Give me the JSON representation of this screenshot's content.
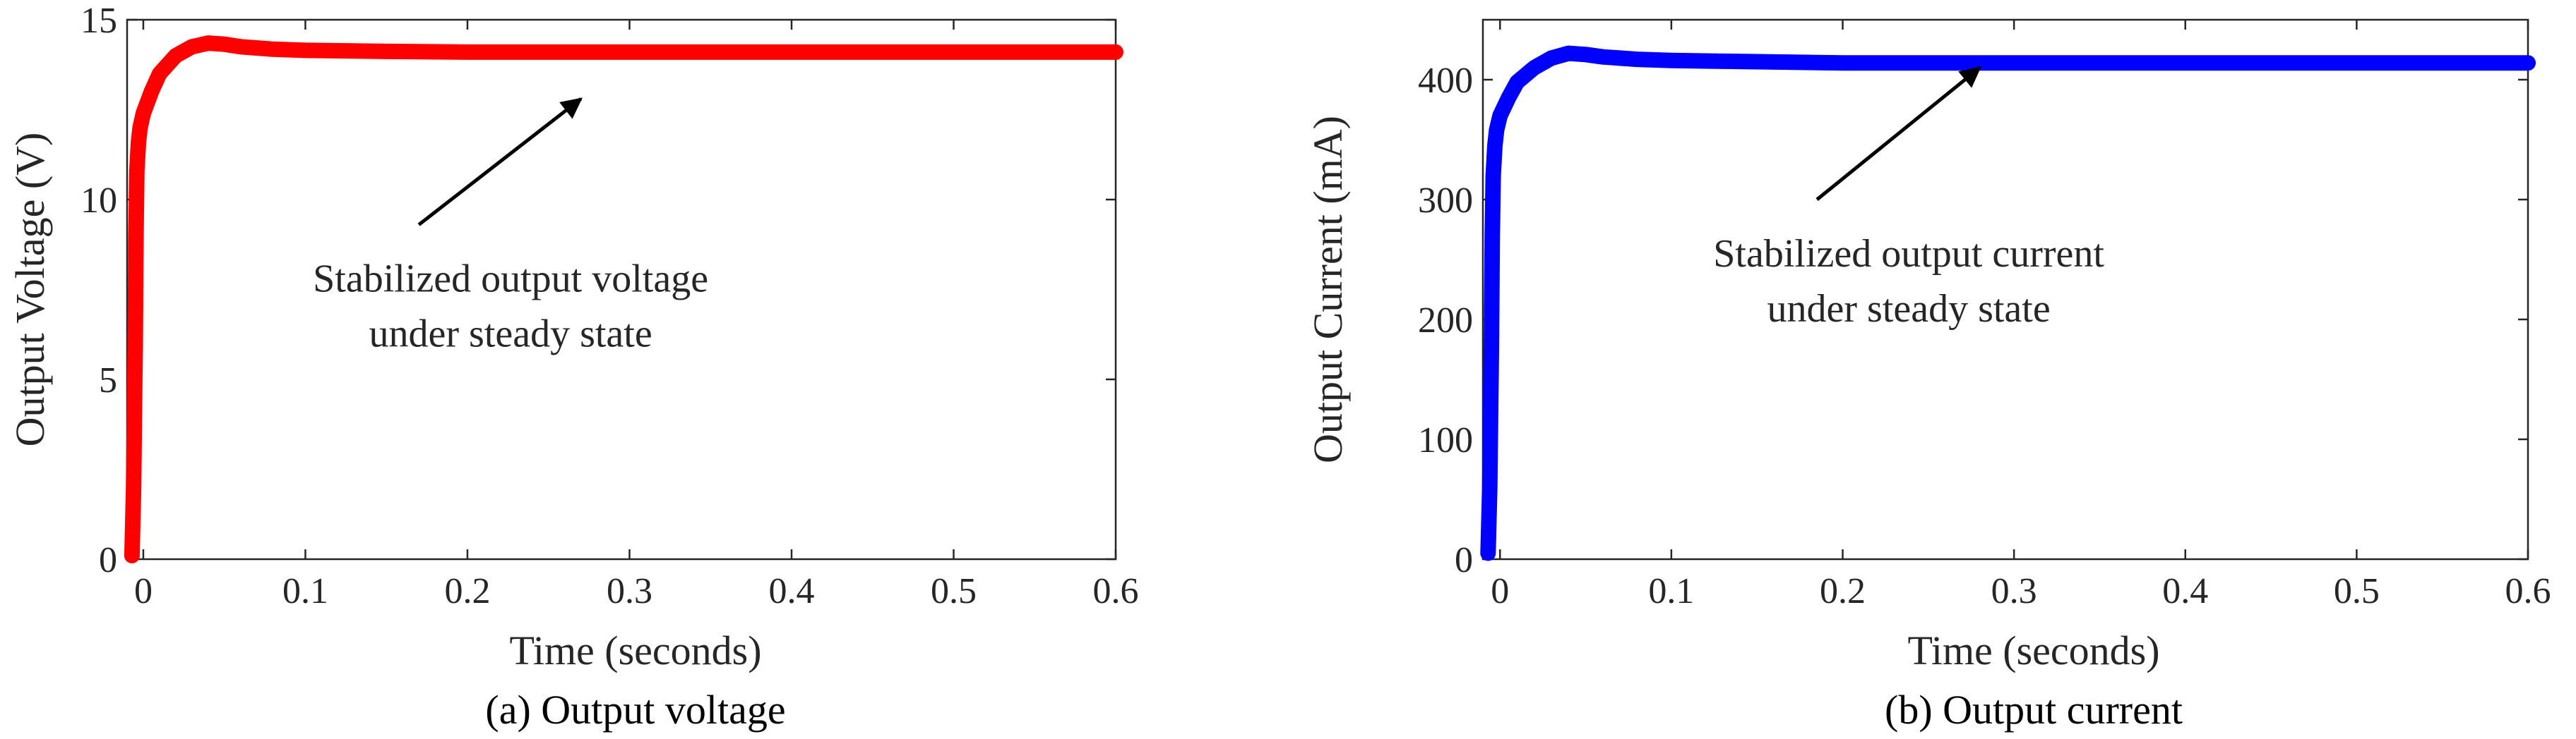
{
  "chart_data": [
    {
      "type": "line",
      "panel": "a",
      "caption": "(a) Output voltage",
      "xlabel": "Time (seconds)",
      "ylabel": "Output Voltage (V)",
      "xlim": [
        -0.01,
        0.6
      ],
      "ylim": [
        0,
        15
      ],
      "xticks": [
        0,
        0.1,
        0.2,
        0.3,
        0.4,
        0.5,
        0.6
      ],
      "yticks": [
        0,
        5,
        10,
        15
      ],
      "grid": false,
      "color": "#ff0000",
      "annotation": {
        "lines": [
          "Stabilized output voltage",
          "under steady state"
        ],
        "arrow_from": [
          0.17,
          9.3
        ],
        "arrow_to": [
          0.27,
          12.8
        ]
      },
      "series": [
        {
          "x": [
            -0.007,
            -0.006,
            -0.005,
            -0.0045,
            -0.004,
            -0.003,
            -0.002,
            0,
            0.005,
            0.01,
            0.02,
            0.03,
            0.04,
            0.05,
            0.06,
            0.08,
            0.1,
            0.15,
            0.2,
            0.3,
            0.4,
            0.5,
            0.6
          ],
          "y": [
            0.1,
            2.0,
            6.0,
            9.0,
            10.8,
            11.6,
            12.0,
            12.4,
            13.0,
            13.5,
            14.0,
            14.25,
            14.35,
            14.32,
            14.25,
            14.18,
            14.15,
            14.12,
            14.1,
            14.1,
            14.1,
            14.1,
            14.1
          ]
        }
      ]
    },
    {
      "type": "line",
      "panel": "b",
      "caption": "(b) Output current",
      "xlabel": "Time (seconds)",
      "ylabel": "Output Current (mA)",
      "xlim": [
        -0.01,
        0.6
      ],
      "ylim": [
        0,
        450
      ],
      "xticks": [
        0,
        0.1,
        0.2,
        0.3,
        0.4,
        0.5,
        0.6
      ],
      "yticks": [
        0,
        100,
        200,
        300,
        400
      ],
      "grid": false,
      "color": "#0000ff",
      "annotation": {
        "lines": [
          "Stabilized output current",
          "under steady state"
        ],
        "arrow_from": [
          0.185,
          300
        ],
        "arrow_to": [
          0.28,
          410
        ]
      },
      "series": [
        {
          "x": [
            -0.007,
            -0.006,
            -0.005,
            -0.0045,
            -0.004,
            -0.003,
            -0.002,
            0,
            0.005,
            0.01,
            0.02,
            0.03,
            0.04,
            0.05,
            0.06,
            0.08,
            0.1,
            0.15,
            0.2,
            0.3,
            0.4,
            0.5,
            0.6
          ],
          "y": [
            5,
            60,
            180,
            270,
            320,
            345,
            358,
            370,
            385,
            398,
            410,
            418,
            422,
            421,
            419,
            417,
            416,
            415,
            414,
            414,
            414,
            414,
            414
          ]
        }
      ]
    }
  ]
}
